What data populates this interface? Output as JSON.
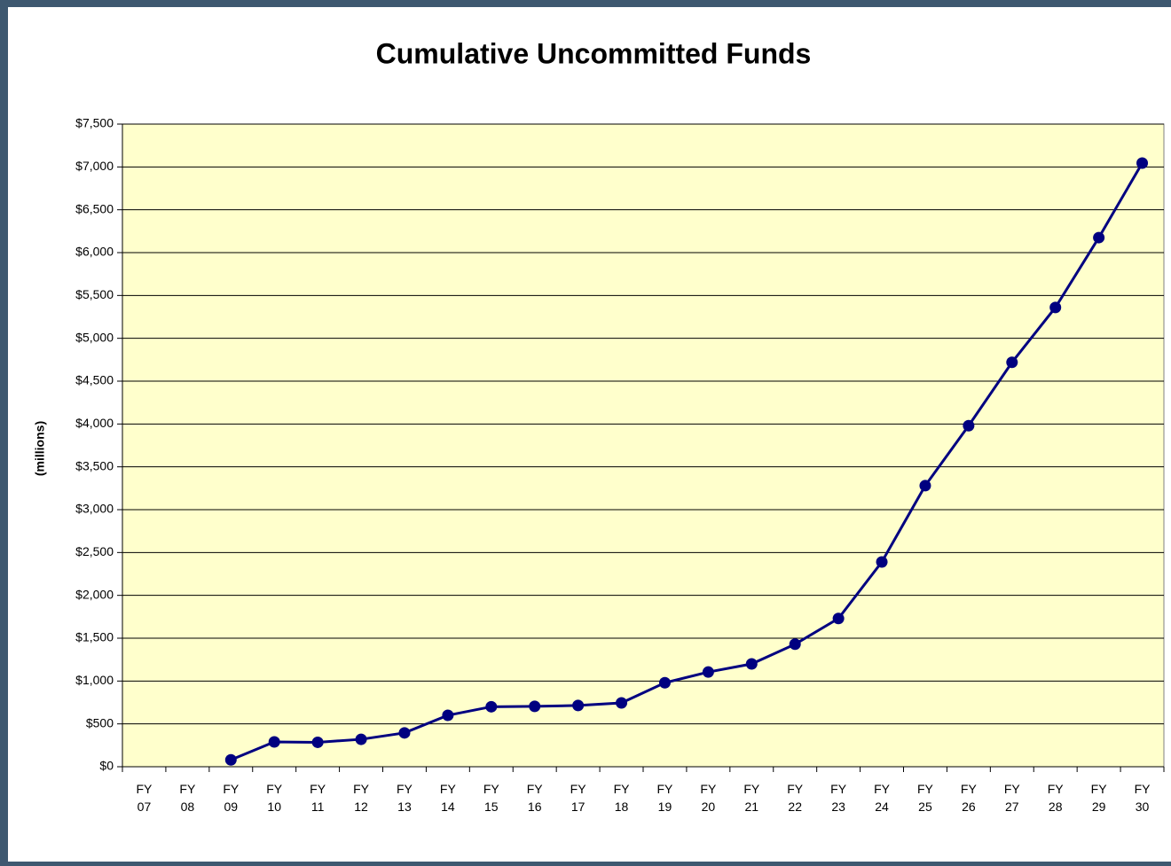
{
  "chart_data": {
    "type": "line",
    "title": "Cumulative Uncommitted Funds",
    "y_label": "(millions)",
    "categories": [
      "FY 07",
      "FY 08",
      "FY 09",
      "FY 10",
      "FY 11",
      "FY 12",
      "FY 13",
      "FY 14",
      "FY 15",
      "FY 16",
      "FY 17",
      "FY 18",
      "FY 19",
      "FY 20",
      "FY 21",
      "FY 22",
      "FY 23",
      "FY 24",
      "FY 25",
      "FY 26",
      "FY 27",
      "FY 28",
      "FY 29",
      "FY 30"
    ],
    "series": [
      {
        "name": "Cumulative Uncommitted Funds",
        "color": "#000080",
        "values": [
          null,
          null,
          80,
          290,
          285,
          320,
          395,
          600,
          700,
          705,
          715,
          745,
          980,
          1105,
          1200,
          1430,
          1730,
          2390,
          3280,
          3980,
          4720,
          5360,
          6175,
          7045
        ]
      }
    ],
    "ylim": [
      0,
      7500
    ],
    "yticks": [
      {
        "value": 0,
        "label": "$0"
      },
      {
        "value": 500,
        "label": "$500"
      },
      {
        "value": 1000,
        "label": "$1,000"
      },
      {
        "value": 1500,
        "label": "$1,500"
      },
      {
        "value": 2000,
        "label": "$2,000"
      },
      {
        "value": 2500,
        "label": "$2,500"
      },
      {
        "value": 3000,
        "label": "$3,000"
      },
      {
        "value": 3500,
        "label": "$3,500"
      },
      {
        "value": 4000,
        "label": "$4,000"
      },
      {
        "value": 4500,
        "label": "$4,500"
      },
      {
        "value": 5000,
        "label": "$5,000"
      },
      {
        "value": 5500,
        "label": "$5,500"
      },
      {
        "value": 6000,
        "label": "$6,000"
      },
      {
        "value": 6500,
        "label": "$6,500"
      },
      {
        "value": 7000,
        "label": "$7,000"
      },
      {
        "value": 7500,
        "label": "$7,500"
      }
    ],
    "grid": true,
    "plot_background": "#ffffcc"
  }
}
